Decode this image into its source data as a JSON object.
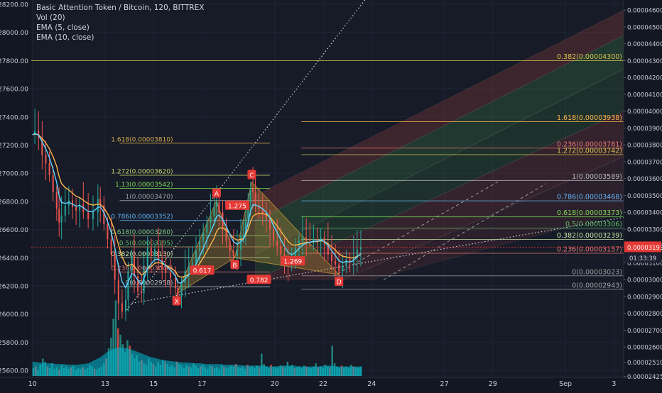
{
  "header": {
    "title": "Basic Attention Token / Bitcoin, 120, BITTREX",
    "indicators": [
      "Vol (20)",
      "EMA (5, close)",
      "EMA (10, close)"
    ]
  },
  "colors": {
    "background": "#131722",
    "grid": "#1e2434",
    "axis_text": "#c9ccd6",
    "candle_up": "#26a69a",
    "candle_down": "#ef5350",
    "ema_fast": "#5fd3ff",
    "ema_slow": "#ffb74d",
    "price_badge": "#e53935"
  },
  "chart_data": {
    "type": "candlestick",
    "left_axis": {
      "ylim": [
        25550,
        28230
      ],
      "ticks": [
        "28200.00",
        "28000.00",
        "27800.00",
        "27600.00",
        "27400.00",
        "27200.00",
        "27000.00",
        "26800.00",
        "26600.00",
        "26400.00",
        "26200.00",
        "26000.00",
        "25800.00",
        "25600.00"
      ]
    },
    "right_axis": {
      "ylim": [
        2.42e-05,
        4.66e-05
      ],
      "ticks": [
        "0.00004600",
        "0.00004500",
        "0.00004400",
        "0.00004300",
        "0.00004200",
        "0.00004100",
        "0.00004000",
        "0.00003900",
        "0.00003800",
        "0.00003700",
        "0.00003600",
        "0.00003500",
        "0.00003400",
        "0.00003300",
        "0.00003200",
        "0.00003100",
        "0.00003000",
        "0.00002900",
        "0.00002800",
        "0.00002700",
        "0.00002600",
        "0.00002510",
        "0.00002425"
      ]
    },
    "x_axis": {
      "ticks": [
        {
          "label": "10",
          "day": 10
        },
        {
          "label": "13",
          "day": 13
        },
        {
          "label": "15",
          "day": 15
        },
        {
          "label": "17",
          "day": 17
        },
        {
          "label": "20",
          "day": 20
        },
        {
          "label": "22",
          "day": 22
        },
        {
          "label": "24",
          "day": 24
        },
        {
          "label": "27",
          "day": 27
        },
        {
          "label": "29",
          "day": 29
        },
        {
          "label": "Sep",
          "day": 32
        },
        {
          "label": "3",
          "day": 34
        }
      ],
      "xlim": [
        9.95,
        34.4
      ]
    },
    "last_price": {
      "label": "0.00003193",
      "value": 3.193e-05,
      "countdown": "01:33:39"
    },
    "price_path": [
      [
        10.0,
        3.86e-05
      ],
      [
        10.1,
        3.885e-05
      ],
      [
        10.25,
        3.84e-05
      ],
      [
        10.4,
        3.74e-05
      ],
      [
        10.55,
        3.69e-05
      ],
      [
        10.7,
        3.62e-05
      ],
      [
        10.85,
        3.52e-05
      ],
      [
        11.0,
        3.42e-05
      ],
      [
        11.1,
        3.34e-05
      ],
      [
        11.2,
        3.38e-05
      ],
      [
        11.35,
        3.44e-05
      ],
      [
        11.5,
        3.47e-05
      ],
      [
        11.65,
        3.43e-05
      ],
      [
        11.8,
        3.41e-05
      ],
      [
        11.95,
        3.45e-05
      ],
      [
        12.1,
        3.4e-05
      ],
      [
        12.3,
        3.36e-05
      ],
      [
        12.5,
        3.4e-05
      ],
      [
        12.7,
        3.48e-05
      ],
      [
        12.8,
        3.44e-05
      ],
      [
        12.95,
        3.33e-05
      ],
      [
        13.1,
        3.24e-05
      ],
      [
        13.25,
        3.15e-05
      ],
      [
        13.4,
        3e-05
      ],
      [
        13.55,
        2.86e-05
      ],
      [
        13.7,
        2.81e-05
      ],
      [
        13.85,
        2.88e-05
      ],
      [
        13.95,
        3.05e-05
      ],
      [
        14.1,
        3.14e-05
      ],
      [
        14.2,
        3.02e-05
      ],
      [
        14.35,
        2.93e-05
      ],
      [
        14.5,
        2.92e-05
      ],
      [
        14.6,
        3.08e-05
      ],
      [
        14.75,
        3.19e-05
      ],
      [
        14.9,
        3.14e-05
      ],
      [
        15.05,
        3.18e-05
      ],
      [
        15.2,
        3.12e-05
      ],
      [
        15.35,
        3.07e-05
      ],
      [
        15.5,
        3.04e-05
      ],
      [
        15.7,
        3.01e-05
      ],
      [
        15.9,
        2.95e-05
      ],
      [
        16.0,
        2.9e-05
      ],
      [
        16.15,
        2.98e-05
      ],
      [
        16.3,
        3.05e-05
      ],
      [
        16.45,
        3.08e-05
      ],
      [
        16.6,
        3.1e-05
      ],
      [
        16.75,
        3.17e-05
      ],
      [
        16.9,
        3.23e-05
      ],
      [
        17.05,
        3.28e-05
      ],
      [
        17.2,
        3.34e-05
      ],
      [
        17.35,
        3.38e-05
      ],
      [
        17.5,
        3.43e-05
      ],
      [
        17.6,
        3.46e-05
      ],
      [
        17.7,
        3.4e-05
      ],
      [
        17.85,
        3.31e-05
      ],
      [
        18.0,
        3.23e-05
      ],
      [
        18.15,
        3.17e-05
      ],
      [
        18.3,
        3.14e-05
      ],
      [
        18.45,
        3.18e-05
      ],
      [
        18.6,
        3.26e-05
      ],
      [
        18.7,
        3.26e-05
      ],
      [
        18.8,
        3.36e-05
      ],
      [
        18.9,
        3.46e-05
      ],
      [
        19.0,
        3.54e-05
      ],
      [
        19.1,
        3.52e-05
      ],
      [
        19.2,
        3.44e-05
      ],
      [
        19.35,
        3.42e-05
      ],
      [
        19.5,
        3.39e-05
      ],
      [
        19.65,
        3.36e-05
      ],
      [
        19.8,
        3.3e-05
      ],
      [
        19.95,
        3.23e-05
      ],
      [
        20.1,
        3.2e-05
      ],
      [
        20.25,
        3.15e-05
      ],
      [
        20.4,
        3.12e-05
      ],
      [
        20.55,
        3.09e-05
      ],
      [
        20.7,
        3.12e-05
      ],
      [
        20.85,
        3.19e-05
      ],
      [
        21.0,
        3.23e-05
      ],
      [
        21.15,
        3.25e-05
      ],
      [
        21.3,
        3.24e-05
      ],
      [
        21.45,
        3.23e-05
      ],
      [
        21.6,
        3.24e-05
      ],
      [
        21.75,
        3.23e-05
      ],
      [
        21.9,
        3.25e-05
      ],
      [
        22.05,
        3.21e-05
      ],
      [
        22.2,
        3.15e-05
      ],
      [
        22.35,
        3.11e-05
      ],
      [
        22.5,
        3.09e-05
      ],
      [
        22.65,
        3.05e-05
      ],
      [
        22.8,
        3.08e-05
      ],
      [
        22.95,
        3.12e-05
      ],
      [
        23.1,
        3.1e-05
      ],
      [
        23.25,
        3.13e-05
      ],
      [
        23.4,
        3.18e-05
      ],
      [
        23.55,
        3.193e-05
      ]
    ],
    "volume": {
      "ylim": [
        0,
        100
      ],
      "values": [
        10,
        12,
        8,
        14,
        22,
        18,
        12,
        10,
        16,
        9,
        11,
        8,
        14,
        10,
        12,
        9,
        11,
        13,
        8,
        10,
        9,
        11,
        8,
        10,
        14,
        12,
        9,
        8,
        10,
        12,
        16,
        22,
        35,
        48,
        72,
        95,
        60,
        52,
        40,
        30,
        45,
        38,
        28,
        22,
        26,
        18,
        20,
        16,
        14,
        22,
        18,
        15,
        12,
        17,
        14,
        20,
        18,
        15,
        12,
        14,
        11,
        18,
        15,
        13,
        10,
        14,
        12,
        11,
        16,
        13,
        10,
        12,
        14,
        11,
        9,
        13,
        12,
        10,
        11,
        9,
        14,
        12,
        10,
        11,
        13,
        12,
        15,
        11,
        10,
        12,
        9,
        14,
        11,
        12,
        10,
        13,
        11,
        28,
        15,
        12,
        10,
        14,
        12,
        11,
        10,
        13,
        12,
        11,
        18,
        12,
        14,
        10,
        11,
        12,
        10,
        13,
        12,
        11,
        10,
        12,
        16,
        11,
        12,
        10,
        14,
        12,
        11,
        38,
        16,
        12,
        10,
        13,
        11,
        12,
        10,
        14,
        12,
        11,
        10,
        12
      ],
      "volume_ma": [
        18,
        17,
        16,
        16,
        15,
        15,
        14,
        14,
        15,
        16,
        20,
        24,
        30,
        34,
        36,
        35,
        33,
        30,
        27,
        24,
        22,
        20,
        19,
        18,
        17,
        17,
        16,
        16,
        15,
        15,
        15,
        14,
        14,
        14,
        13,
        13,
        13,
        13,
        12,
        12,
        13,
        13,
        13,
        12,
        12,
        12,
        12,
        13,
        13,
        12,
        12,
        12,
        12,
        12
      ]
    },
    "fib_retracement_left": {
      "levels": [
        {
          "label": "1.618(0.00003810)",
          "value": 3.81e-05,
          "color": "#d6a84f"
        },
        {
          "label": "1.272(0.00003620)",
          "value": 3.62e-05,
          "color": "#c9d26b"
        },
        {
          "label": "1.13(0.00003542)",
          "value": 3.542e-05,
          "color": "#7ed957"
        },
        {
          "label": "1(0.00003470)",
          "value": 3.47e-05,
          "color": "#9e9e9e"
        },
        {
          "label": "0.786(0.00003352)",
          "value": 3.352e-05,
          "color": "#64b5f6"
        },
        {
          "label": "0.618(0.00003260)",
          "value": 3.26e-05,
          "color": "#81c784"
        },
        {
          "label": "0.5(0.00003195)",
          "value": 3.195e-05,
          "color": "#66bb6a"
        },
        {
          "label": "0.382(0.00003130)",
          "value": 3.13e-05,
          "color": "#c5e1a5"
        },
        {
          "label": "0.236(0.00003046)",
          "value": 3.046e-05,
          "color": "#e57373"
        },
        {
          "label": "0(0.00002958)",
          "value": 2.958e-05,
          "color": "#bdbdbd"
        }
      ]
    },
    "fib_retracement_right": {
      "levels": [
        {
          "label": "0.382(0.00004300)",
          "value": 4.3e-05,
          "color": "#d6c34f"
        },
        {
          "label": "1.618(0.00003938)",
          "value": 3.938e-05,
          "color": "#ffb74d"
        },
        {
          "label": "0.236(0.00003781)",
          "value": 3.781e-05,
          "color": "#e57373"
        },
        {
          "label": "1.272(0.00003742)",
          "value": 3.742e-05,
          "color": "#d6c34f"
        },
        {
          "label": "1(0.00003589)",
          "value": 3.589e-05,
          "color": "#bdbdbd"
        },
        {
          "label": "0.786(0.00003468)",
          "value": 3.468e-05,
          "color": "#64b5f6"
        },
        {
          "label": "0.618(0.00003373)",
          "value": 3.373e-05,
          "color": "#7ed957"
        },
        {
          "label": "0.5(0.00003306)",
          "value": 3.306e-05,
          "color": "#66bb6a"
        },
        {
          "label": "0.382(0.00003239)",
          "value": 3.239e-05,
          "color": "#c5e1a5"
        },
        {
          "label": "0.236(0.00003157)",
          "value": 3.157e-05,
          "color": "#e57373"
        },
        {
          "label": "0(0.00003023)",
          "value": 3.023e-05,
          "color": "#9e9e9e"
        },
        {
          "label": "0(0.00002943)",
          "value": 2.943e-05,
          "color": "#9e9e9e"
        }
      ]
    },
    "harmonic_pattern": {
      "points": [
        {
          "label": "X",
          "day": 15.95,
          "value": 2.915e-05
        },
        {
          "label": "A",
          "day": 17.6,
          "value": 3.47e-05
        },
        {
          "label": "B",
          "day": 18.35,
          "value": 3.13e-05
        },
        {
          "label": "C",
          "day": 19.05,
          "value": 3.58e-05
        },
        {
          "label": "D",
          "day": 22.65,
          "value": 3.03e-05
        }
      ],
      "ratios": [
        {
          "label": "0.617",
          "day": 17.0,
          "value": 3.055e-05
        },
        {
          "label": "1.275",
          "day": 18.45,
          "value": 3.44e-05
        },
        {
          "label": "1.269",
          "day": 20.75,
          "value": 3.11e-05
        },
        {
          "label": "0.782",
          "day": 19.35,
          "value": 3e-05
        }
      ]
    }
  }
}
